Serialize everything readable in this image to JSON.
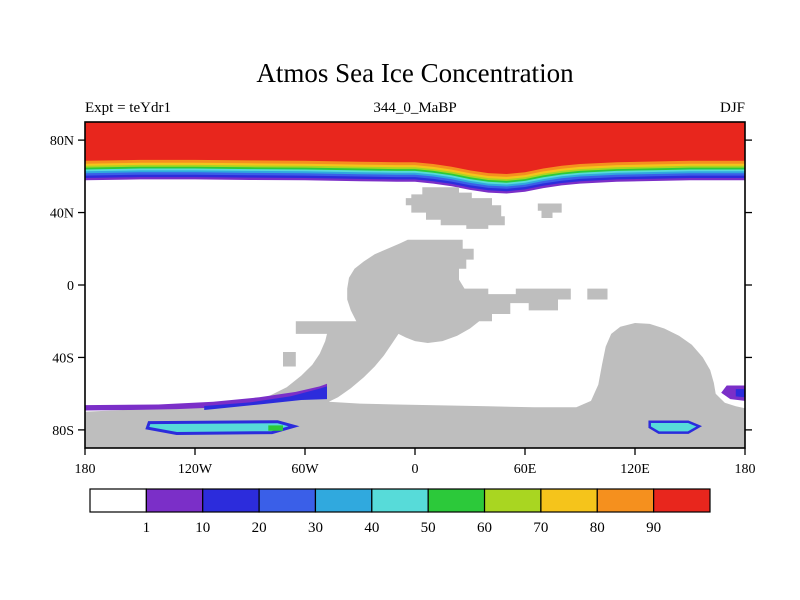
{
  "chart_data": {
    "type": "heatmap",
    "title": "Atmos Sea Ice Concentration",
    "subtitle": "344_0_MaBP",
    "experiment": "Expt = teYdr1",
    "season": "DJF",
    "projection": "lon-lat",
    "lon_range": [
      -180,
      180
    ],
    "lat_range": [
      -90,
      90
    ],
    "grid": false,
    "legend_position": "bottom",
    "ocean_color": "#FFFFFF",
    "land_color": "#BEBEBE",
    "x_ticks": [
      {
        "lon": -180,
        "label": "180"
      },
      {
        "lon": -120,
        "label": "120W"
      },
      {
        "lon": -60,
        "label": "60W"
      },
      {
        "lon": 0,
        "label": "0"
      },
      {
        "lon": 60,
        "label": "60E"
      },
      {
        "lon": 120,
        "label": "120E"
      },
      {
        "lon": 180,
        "label": "180"
      }
    ],
    "y_ticks": [
      {
        "lat": 80,
        "label": "80N"
      },
      {
        "lat": 40,
        "label": "40N"
      },
      {
        "lat": 0,
        "label": "0"
      },
      {
        "lat": -40,
        "label": "40S"
      },
      {
        "lat": -80,
        "label": "80S"
      }
    ],
    "legend": {
      "levels": [
        "1",
        "10",
        "20",
        "30",
        "40",
        "50",
        "60",
        "70",
        "80",
        "90"
      ],
      "colors": [
        "#FFFFFF",
        "#7B2FC8",
        "#2C2CDC",
        "#3A5FE8",
        "#30A9DE",
        "#57DBD9",
        "#2CC93A",
        "#A9D621",
        "#F5C41B",
        "#F5901E",
        "#E8261D"
      ]
    },
    "north_ice_edge": [
      [
        -180,
        57.8
      ],
      [
        -150,
        58.3
      ],
      [
        -120,
        58.3
      ],
      [
        -90,
        58
      ],
      [
        -60,
        57.8
      ],
      [
        -30,
        57.3
      ],
      [
        -10,
        57
      ],
      [
        0,
        57
      ],
      [
        10,
        56
      ],
      [
        20,
        54.5
      ],
      [
        30,
        52.5
      ],
      [
        40,
        51
      ],
      [
        50,
        50.5
      ],
      [
        60,
        51.5
      ],
      [
        70,
        53.5
      ],
      [
        80,
        55
      ],
      [
        90,
        56
      ],
      [
        110,
        57
      ],
      [
        130,
        57.4
      ],
      [
        150,
        57.8
      ],
      [
        180,
        57.8
      ]
    ],
    "north_ice_bands": [
      {
        "level": "1",
        "color_index": 1,
        "offset": 0
      },
      {
        "level": "10",
        "color_index": 2,
        "offset": 1.3
      },
      {
        "level": "20",
        "color_index": 3,
        "offset": 2.6
      },
      {
        "level": "30",
        "color_index": 4,
        "offset": 3.9
      },
      {
        "level": "40",
        "color_index": 5,
        "offset": 5.0
      },
      {
        "level": "50",
        "color_index": 6,
        "offset": 6.0
      },
      {
        "level": "60",
        "color_index": 7,
        "offset": 7.0
      },
      {
        "level": "70",
        "color_index": 8,
        "offset": 8.0
      },
      {
        "level": "80",
        "color_index": 9,
        "offset": 9.2
      },
      {
        "level": "90",
        "color_index": 10,
        "offset": 10.8
      }
    ],
    "land_polygons": {
      "supercontinent": [
        [
          -180,
          -90
        ],
        [
          -180,
          -70
        ],
        [
          -150,
          -68.5
        ],
        [
          -125,
          -67
        ],
        [
          -103,
          -65.5
        ],
        [
          -90,
          -64
        ],
        [
          -80,
          -61.5
        ],
        [
          -70,
          -56.5
        ],
        [
          -62,
          -50
        ],
        [
          -56,
          -44
        ],
        [
          -52,
          -38
        ],
        [
          -49,
          -31
        ],
        [
          -48,
          -27
        ],
        [
          -65,
          -27
        ],
        [
          -65,
          -20
        ],
        [
          -32,
          -20
        ],
        [
          -35,
          -14
        ],
        [
          -37,
          -8
        ],
        [
          -37,
          -2
        ],
        [
          -36,
          4
        ],
        [
          -33,
          9
        ],
        [
          -28,
          13
        ],
        [
          -22,
          17
        ],
        [
          -15,
          20
        ],
        [
          -8,
          23
        ],
        [
          -4,
          25
        ],
        [
          12,
          25
        ],
        [
          26,
          25
        ],
        [
          26,
          20
        ],
        [
          32,
          20
        ],
        [
          32,
          14
        ],
        [
          28,
          14
        ],
        [
          28,
          9
        ],
        [
          24,
          9
        ],
        [
          24,
          3
        ],
        [
          27,
          -2
        ],
        [
          40,
          -2
        ],
        [
          40,
          -5
        ],
        [
          55,
          -5
        ],
        [
          55,
          -2
        ],
        [
          85,
          -2
        ],
        [
          85,
          -8
        ],
        [
          78,
          -8
        ],
        [
          78,
          -14
        ],
        [
          62,
          -14
        ],
        [
          62,
          -10
        ],
        [
          52,
          -10
        ],
        [
          52,
          -16
        ],
        [
          42,
          -16
        ],
        [
          42,
          -20
        ],
        [
          35,
          -20
        ],
        [
          30,
          -24
        ],
        [
          23,
          -28
        ],
        [
          15,
          -31
        ],
        [
          7,
          -32
        ],
        [
          0,
          -31
        ],
        [
          -5,
          -29
        ],
        [
          -9,
          -27
        ],
        [
          -13,
          -33
        ],
        [
          -17,
          -39
        ],
        [
          -22,
          -45
        ],
        [
          -28,
          -51
        ],
        [
          -35,
          -57
        ],
        [
          -42,
          -62
        ],
        [
          -47,
          -64.5
        ],
        [
          -30,
          -65.5
        ],
        [
          -10,
          -66
        ],
        [
          15,
          -66.5
        ],
        [
          40,
          -67
        ],
        [
          65,
          -67.5
        ],
        [
          88,
          -67.5
        ],
        [
          96,
          -64
        ],
        [
          100,
          -55
        ],
        [
          102,
          -44
        ],
        [
          104,
          -34
        ],
        [
          107,
          -27
        ],
        [
          112,
          -23
        ],
        [
          120,
          -21
        ],
        [
          128,
          -21.5
        ],
        [
          136,
          -24
        ],
        [
          144,
          -28
        ],
        [
          151,
          -33
        ],
        [
          157,
          -40
        ],
        [
          161,
          -47
        ],
        [
          163,
          -54
        ],
        [
          164,
          -60
        ],
        [
          169,
          -65
        ],
        [
          175,
          -67
        ],
        [
          180,
          -68
        ],
        [
          180,
          -90
        ]
      ],
      "north_blob": [
        [
          -5,
          44
        ],
        [
          -5,
          48
        ],
        [
          -2,
          48
        ],
        [
          -2,
          50
        ],
        [
          4,
          50
        ],
        [
          4,
          54
        ],
        [
          24,
          54
        ],
        [
          24,
          51
        ],
        [
          31,
          51
        ],
        [
          31,
          48
        ],
        [
          42,
          48
        ],
        [
          42,
          44
        ],
        [
          47,
          44
        ],
        [
          47,
          38
        ],
        [
          49,
          38
        ],
        [
          49,
          33
        ],
        [
          40,
          33
        ],
        [
          40,
          31
        ],
        [
          28,
          31
        ],
        [
          28,
          33
        ],
        [
          14,
          33
        ],
        [
          14,
          36
        ],
        [
          6,
          36
        ],
        [
          6,
          40
        ],
        [
          -2,
          40
        ],
        [
          -2,
          44
        ]
      ],
      "northeast_blob": [
        [
          67,
          45
        ],
        [
          80,
          45
        ],
        [
          80,
          40
        ],
        [
          75,
          40
        ],
        [
          75,
          37
        ],
        [
          69,
          37
        ],
        [
          69,
          41
        ],
        [
          67,
          41
        ]
      ],
      "east_islet": [
        [
          94,
          -2
        ],
        [
          105,
          -2
        ],
        [
          105,
          -8
        ],
        [
          94,
          -8
        ]
      ],
      "west_islet": [
        [
          -72,
          -37
        ],
        [
          -65,
          -37
        ],
        [
          -65,
          -45
        ],
        [
          -72,
          -45
        ]
      ]
    },
    "south_ice_polygons": [
      {
        "name": "southwest-purple-band",
        "fill": 1,
        "points": [
          [
            -180,
            -66.3
          ],
          [
            -140,
            -66
          ],
          [
            -110,
            -64.5
          ],
          [
            -85,
            -62
          ],
          [
            -65,
            -59
          ],
          [
            -52,
            -56
          ],
          [
            -48,
            -54.5
          ],
          [
            -48,
            -60
          ],
          [
            -60,
            -62.5
          ],
          [
            -80,
            -65
          ],
          [
            -105,
            -67.5
          ],
          [
            -130,
            -68.5
          ],
          [
            -155,
            -69
          ],
          [
            -180,
            -69.3
          ]
        ]
      },
      {
        "name": "southwest-blue-wedge",
        "fill": 2,
        "points": [
          [
            -115,
            -66.8
          ],
          [
            -90,
            -64.8
          ],
          [
            -68,
            -61.5
          ],
          [
            -53,
            -57.5
          ],
          [
            -48,
            -56
          ],
          [
            -48,
            -63
          ],
          [
            -62,
            -63.5
          ],
          [
            -85,
            -66
          ],
          [
            -110,
            -68.5
          ],
          [
            -115,
            -69
          ]
        ]
      },
      {
        "name": "southwest-cyan-bay",
        "fill": 5,
        "stroke": 2,
        "stroke_width": 3,
        "points": [
          [
            -145,
            -76
          ],
          [
            -75,
            -75.5
          ],
          [
            -66,
            -78
          ],
          [
            -78,
            -81.5
          ],
          [
            -130,
            -82
          ],
          [
            -146,
            -79
          ]
        ]
      },
      {
        "name": "southwest-green-speck",
        "fill": 6,
        "points": [
          [
            -80,
            -77.5
          ],
          [
            -72,
            -77.5
          ],
          [
            -72,
            -80.5
          ],
          [
            -80,
            -80.5
          ]
        ]
      },
      {
        "name": "southeast-cyan-bay",
        "fill": 5,
        "stroke": 2,
        "stroke_width": 2.5,
        "points": [
          [
            128,
            -75.5
          ],
          [
            149,
            -75.5
          ],
          [
            155,
            -78
          ],
          [
            149,
            -81.5
          ],
          [
            133,
            -81.5
          ],
          [
            128,
            -78.5
          ]
        ]
      },
      {
        "name": "east-edge-purple",
        "fill": 1,
        "points": [
          [
            170,
            -55.5
          ],
          [
            180,
            -55.5
          ],
          [
            180,
            -64
          ],
          [
            172,
            -63
          ],
          [
            167,
            -59.5
          ]
        ]
      },
      {
        "name": "east-edge-blue",
        "fill": 2,
        "points": [
          [
            175,
            -57.5
          ],
          [
            180,
            -57.5
          ],
          [
            180,
            -62
          ],
          [
            175,
            -61.5
          ]
        ]
      }
    ]
  }
}
